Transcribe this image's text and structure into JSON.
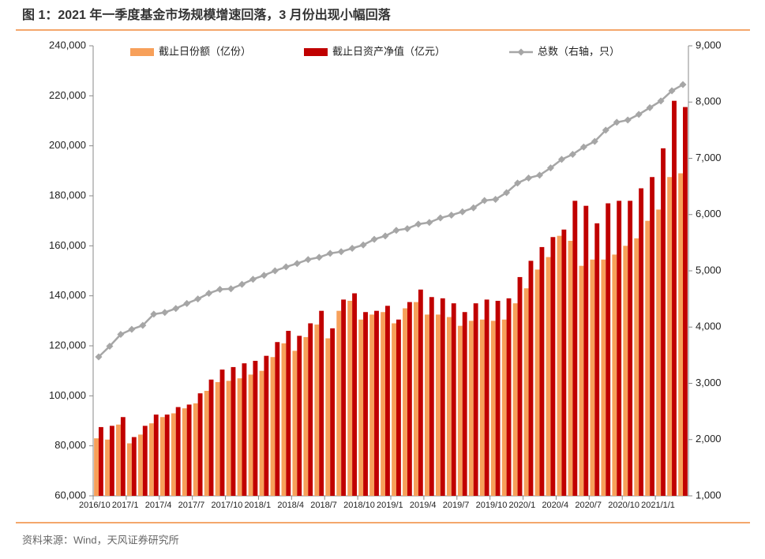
{
  "chart_data": {
    "type": "bar",
    "title": "图 1：2021 年一季度基金市场规模增速回落，3 月份出现小幅回落",
    "source": "资料来源：Wind，天风证券研究所",
    "categories": [
      "2016/10",
      null,
      null,
      "2017/1",
      null,
      null,
      "2017/4",
      null,
      null,
      "2017/7",
      null,
      null,
      "2017/10",
      null,
      null,
      "2018/1",
      null,
      null,
      "2018/4",
      null,
      null,
      "2018/7",
      null,
      null,
      "2018/10",
      null,
      null,
      "2019/1",
      null,
      null,
      "2019/4",
      null,
      null,
      "2019/7",
      null,
      null,
      "2019/10",
      null,
      null,
      "2020/1",
      null,
      null,
      "2020/4",
      null,
      null,
      "2020/7",
      null,
      null,
      "2020/10",
      null,
      null,
      "2021/1/1",
      null,
      null
    ],
    "series": [
      {
        "name": "截止日份额（亿份）",
        "color": "#f7a05a",
        "type": "bar",
        "values": [
          83000,
          82500,
          88500,
          81000,
          84500,
          89000,
          91500,
          93000,
          95000,
          97000,
          102000,
          105500,
          106000,
          107000,
          108500,
          110000,
          115500,
          121000,
          118000,
          123500,
          128500,
          123000,
          134000,
          138000,
          130500,
          132500,
          133500,
          129000,
          135000,
          137500,
          132500,
          132500,
          131500,
          128000,
          130000,
          130500,
          130000,
          130500,
          137000,
          143000,
          150500,
          155500,
          164000,
          162000,
          152000,
          154500,
          154500,
          156500,
          160000,
          163000,
          170000,
          174500,
          187500,
          189000
        ]
      },
      {
        "name": "截止日资产净值（亿元）",
        "color": "#c00000",
        "type": "bar",
        "values": [
          87500,
          88000,
          91500,
          83500,
          88000,
          92500,
          92500,
          95500,
          96500,
          101000,
          106500,
          110500,
          111500,
          113000,
          114000,
          116000,
          121500,
          126000,
          124000,
          129000,
          134000,
          127000,
          138500,
          141000,
          133500,
          134000,
          136000,
          130500,
          137500,
          142500,
          139500,
          139000,
          137000,
          133500,
          137000,
          138500,
          138000,
          139000,
          147500,
          154000,
          159500,
          163500,
          166500,
          178000,
          176000,
          169000,
          177000,
          178000,
          178000,
          183000,
          187500,
          199000,
          218000,
          215500
        ]
      },
      {
        "name": "总数（右轴，只）",
        "color": "#a6a6a6",
        "type": "line",
        "axis": "y2",
        "values": [
          3470,
          3660,
          3870,
          3960,
          4030,
          4230,
          4260,
          4330,
          4420,
          4500,
          4600,
          4670,
          4680,
          4760,
          4850,
          4920,
          5000,
          5070,
          5130,
          5200,
          5240,
          5310,
          5340,
          5400,
          5460,
          5560,
          5620,
          5720,
          5750,
          5830,
          5860,
          5940,
          5990,
          6050,
          6120,
          6250,
          6270,
          6390,
          6560,
          6650,
          6700,
          6830,
          6980,
          7070,
          7200,
          7300,
          7500,
          7640,
          7680,
          7780,
          7900,
          8020,
          8200,
          8310
        ]
      }
    ],
    "ylim": [
      60000,
      240000
    ],
    "yticks": [
      {
        "value": 60000,
        "label": "60,000"
      },
      {
        "value": 80000,
        "label": "80,000"
      },
      {
        "value": 100000,
        "label": "100,000"
      },
      {
        "value": 120000,
        "label": "120,000"
      },
      {
        "value": 140000,
        "label": "140,000"
      },
      {
        "value": 160000,
        "label": "160,000"
      },
      {
        "value": 180000,
        "label": "180,000"
      },
      {
        "value": 200000,
        "label": "200,000"
      },
      {
        "value": 220000,
        "label": "220,000"
      },
      {
        "value": 240000,
        "label": "240,000"
      }
    ],
    "y2lim": [
      1000,
      9000
    ],
    "y2ticks": [
      {
        "value": 1000,
        "label": "1,000"
      },
      {
        "value": 2000,
        "label": "2,000"
      },
      {
        "value": 3000,
        "label": "3,000"
      },
      {
        "value": 4000,
        "label": "4,000"
      },
      {
        "value": 5000,
        "label": "5,000"
      },
      {
        "value": 6000,
        "label": "6,000"
      },
      {
        "value": 7000,
        "label": "7,000"
      },
      {
        "value": 8000,
        "label": "8,000"
      },
      {
        "value": 9000,
        "label": "9,000"
      }
    ],
    "legend": "top"
  }
}
